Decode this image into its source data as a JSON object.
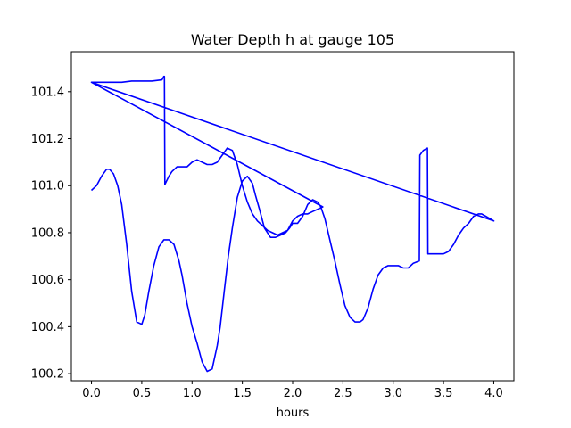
{
  "chart_data": {
    "type": "line",
    "title": "Water Depth h at gauge 105",
    "xlabel": "hours",
    "ylabel": "",
    "xlim": [
      -0.2,
      4.2
    ],
    "ylim": [
      100.17,
      101.57
    ],
    "xticks": [
      0.0,
      0.5,
      1.0,
      1.5,
      2.0,
      2.5,
      3.0,
      3.5,
      4.0
    ],
    "xtick_labels": [
      "0.0",
      "0.5",
      "1.0",
      "1.5",
      "2.0",
      "2.5",
      "3.0",
      "3.5",
      "4.0"
    ],
    "yticks": [
      100.2,
      100.4,
      100.6,
      100.8,
      101.0,
      101.2,
      101.4
    ],
    "ytick_labels": [
      "100.2",
      "100.4",
      "100.6",
      "100.8",
      "101.0",
      "101.2",
      "101.4"
    ],
    "grid": false,
    "legend": "none",
    "series": [
      {
        "color": "#0000ff",
        "x": [
          0.0,
          0.05,
          0.1,
          0.15,
          0.18,
          0.22,
          0.26,
          0.3,
          0.35,
          0.4,
          0.45,
          0.5,
          0.53,
          0.57,
          0.62,
          0.67,
          0.72,
          0.77,
          0.82,
          0.87,
          0.9,
          0.95,
          1.0,
          1.05,
          1.1,
          1.15,
          1.2,
          1.25,
          1.28,
          1.32,
          1.36,
          1.4,
          1.45,
          1.5,
          1.55,
          1.6,
          1.63,
          1.67,
          1.72,
          1.78,
          1.83,
          1.88,
          1.93,
          1.97,
          2.0,
          2.05,
          2.1,
          2.15,
          2.2,
          2.25,
          2.28,
          2.32,
          2.37,
          2.42,
          2.47,
          2.52,
          2.57,
          2.62,
          2.67,
          2.7,
          2.75,
          2.8,
          2.85,
          2.9,
          2.95,
          3.0,
          3.05,
          3.1,
          3.15,
          3.2,
          3.26,
          3.265,
          3.3,
          3.34,
          3.345,
          3.4,
          3.45,
          3.5,
          3.55,
          3.6,
          3.65,
          3.7,
          3.75,
          3.8,
          3.85,
          3.88,
          3.92,
          3.96,
          4.0,
          0.0,
          0.0,
          0.1,
          0.2,
          0.3,
          0.4,
          0.5,
          0.6,
          0.7,
          0.72,
          0.725,
          0.73,
          0.77,
          0.8,
          0.85,
          0.9,
          0.95,
          1.0,
          1.05,
          1.1,
          1.15,
          1.2,
          1.25,
          1.3,
          1.35,
          1.4,
          1.45,
          1.5,
          1.55,
          1.6,
          1.65,
          1.7,
          1.75,
          1.8,
          1.85,
          1.9,
          1.95,
          2.0,
          2.05,
          2.1,
          2.15,
          2.2,
          2.25,
          2.3,
          0.0
        ],
        "y": [
          100.98,
          101.0,
          101.04,
          101.07,
          101.07,
          101.05,
          101.0,
          100.92,
          100.75,
          100.55,
          100.42,
          100.41,
          100.45,
          100.55,
          100.66,
          100.74,
          100.77,
          100.77,
          100.75,
          100.68,
          100.62,
          100.5,
          100.4,
          100.33,
          100.25,
          100.21,
          100.22,
          100.32,
          100.4,
          100.55,
          100.7,
          100.82,
          100.95,
          101.02,
          101.04,
          101.01,
          100.96,
          100.9,
          100.82,
          100.78,
          100.78,
          100.79,
          100.8,
          100.82,
          100.84,
          100.84,
          100.87,
          100.92,
          100.94,
          100.93,
          100.91,
          100.86,
          100.77,
          100.68,
          100.58,
          100.49,
          100.44,
          100.42,
          100.42,
          100.43,
          100.48,
          100.56,
          100.62,
          100.65,
          100.66,
          100.66,
          100.66,
          100.65,
          100.65,
          100.67,
          100.68,
          101.13,
          101.15,
          101.16,
          100.71,
          100.71,
          100.71,
          100.71,
          100.72,
          100.75,
          100.79,
          100.82,
          100.84,
          100.87,
          100.88,
          100.88,
          100.87,
          100.86,
          100.85,
          101.44,
          101.44,
          101.44,
          101.44,
          101.44,
          101.445,
          101.445,
          101.445,
          101.45,
          101.465,
          101.465,
          101.005,
          101.04,
          101.06,
          101.08,
          101.08,
          101.08,
          101.1,
          101.11,
          101.1,
          101.09,
          101.09,
          101.1,
          101.13,
          101.16,
          101.15,
          101.09,
          101.0,
          100.93,
          100.88,
          100.85,
          100.83,
          100.81,
          100.8,
          100.79,
          100.8,
          100.81,
          100.85,
          100.87,
          100.88,
          100.88,
          100.89,
          100.9,
          100.91,
          101.44
        ]
      }
    ]
  }
}
